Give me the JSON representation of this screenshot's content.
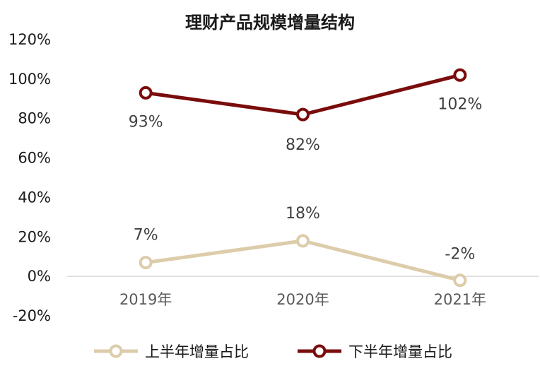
{
  "chart_data": {
    "type": "line",
    "title": "理财产品规模增量结构",
    "categories": [
      "2019年",
      "2020年",
      "2021年"
    ],
    "series": [
      {
        "name": "上半年增量占比",
        "values": [
          7,
          18,
          -2
        ],
        "labels": [
          "7%",
          "18%",
          "-2%"
        ],
        "color": "#ddccaa"
      },
      {
        "name": "下半年增量占比",
        "values": [
          93,
          82,
          102
        ],
        "labels": [
          "93%",
          "82%",
          "102%"
        ],
        "color": "#7a0c0c"
      }
    ],
    "ylim": [
      -20,
      120
    ],
    "yticks": [
      -20,
      0,
      20,
      40,
      60,
      80,
      100,
      120
    ],
    "ytick_labels": [
      "-20%",
      "0%",
      "20%",
      "40%",
      "60%",
      "80%",
      "100%",
      "120%"
    ],
    "grid": false,
    "legend": "bottom"
  }
}
